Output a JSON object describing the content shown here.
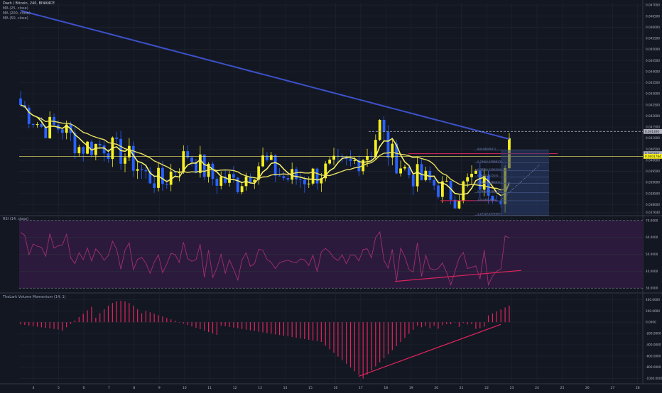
{
  "header": {
    "title": "Dash / Bitcoin, 240, BINANCE",
    "indicators": [
      "MA (25, close)",
      "MA (200, close)",
      "MA (50, close)"
    ]
  },
  "colors": {
    "background": "#131722",
    "up": "#f5f01f",
    "down": "#2962ff",
    "ma25": "#f5f069",
    "ma200": "#3c50c8",
    "rsi": "#a03070",
    "momentum": "#e0245e",
    "trendline": "#e0245e"
  },
  "chart_data": [
    {
      "type": "candlestick",
      "yticks": [
        "0.047000",
        "0.046500",
        "0.046000",
        "0.045500",
        "0.045000",
        "0.044500",
        "0.044000",
        "0.043500",
        "0.043000",
        "0.042500",
        "0.042000",
        "0.041500",
        "0.041000",
        "0.040500",
        "0.040000",
        "0.039500",
        "0.039000",
        "0.038500",
        "0.038000",
        "0.037640"
      ],
      "price_labels": {
        "last": "0.0401784",
        "level1": "0.041300",
        "level2": "0.040300"
      },
      "fib_labels": [
        "0(0.0404557)",
        "0.236(0.0398813)",
        "0.382(0.0395294)",
        "0.5(0.0392533)",
        "0.618(0.0389611)",
        "0.786(0.0385432)",
        "1(0.0381783)",
        "1.272(0.0375307)"
      ],
      "xticks": [
        "4",
        "5",
        "6",
        "7",
        "8",
        "9",
        "10",
        "11",
        "12",
        "13",
        "14",
        "15",
        "16",
        "17",
        "18",
        "19",
        "20",
        "21",
        "22",
        "23",
        "24",
        "25",
        "26",
        "27",
        "28"
      ],
      "ylim": [
        0.0376,
        0.0471
      ]
    },
    {
      "type": "line",
      "title": "RSI (14, close)",
      "yticks": [
        "70.0000",
        "60.0000",
        "50.0000",
        "40.0000",
        "30.0000"
      ],
      "ylim": [
        28,
        72
      ]
    },
    {
      "type": "bar",
      "title": "TheLark Volume Momentum (14, 1)",
      "yticks": [
        "400.0000",
        "200.0000",
        "0.0000",
        "-200.0000",
        "-400.0000",
        "-600.0000",
        "-800.0000",
        "-1000.0000"
      ],
      "ylim": [
        -1080,
        480
      ]
    }
  ]
}
